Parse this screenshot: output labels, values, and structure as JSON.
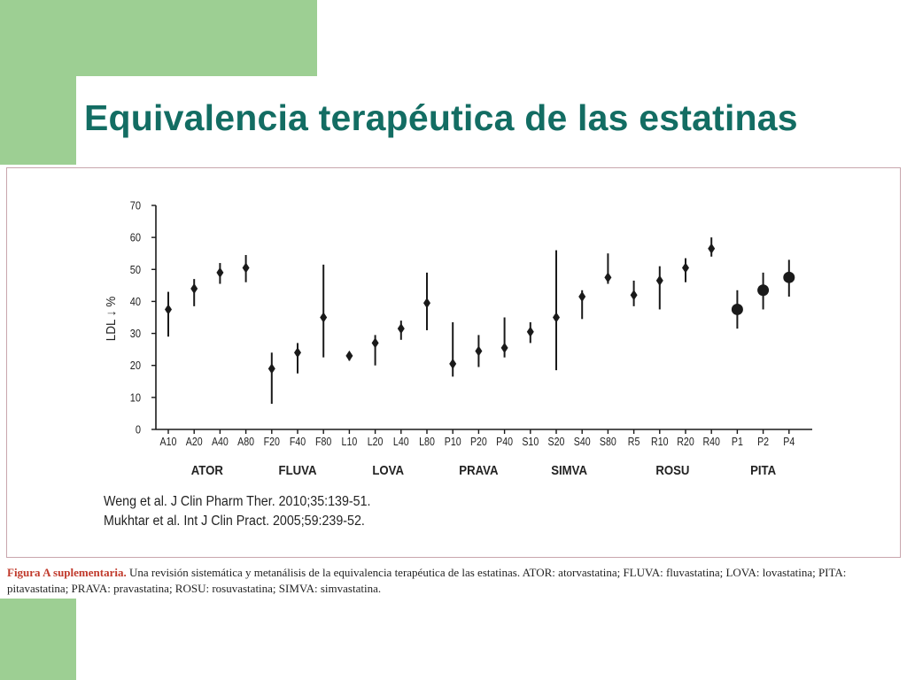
{
  "slide": {
    "title": "Equivalencia terapéutica de las estatinas"
  },
  "references": [
    "Weng et al. J Clin Pharm Ther. 2010;35:139-51.",
    "Mukhtar et al. Int J Clin Pract. 2005;59:239-52."
  ],
  "caption": {
    "label": "Figura A suplementaria.",
    "text": "Una revisión sistemática y metanálisis de la equivalencia terapéutica de las estatinas. ATOR: atorvastatina; FLUVA: fluvastatina; LOVA: lovastatina; PITA: pitavastatina; PRAVA: pravastatina; ROSU: rosuvastatina; SIMVA: simvastatina."
  },
  "chart_data": {
    "type": "scatter",
    "ylabel": "LDL ↓ %",
    "ylim": [
      0,
      70
    ],
    "yticks": [
      0,
      10,
      20,
      30,
      40,
      50,
      60,
      70
    ],
    "grid": false,
    "categories": [
      "A10",
      "A20",
      "A40",
      "A80",
      "F20",
      "F40",
      "F80",
      "L10",
      "L20",
      "L40",
      "L80",
      "P10",
      "P20",
      "P40",
      "S10",
      "S20",
      "S40",
      "S80",
      "R5",
      "R10",
      "R20",
      "R40",
      "P1",
      "P2",
      "P4"
    ],
    "values": [
      37.5,
      44,
      49,
      50.5,
      19,
      24,
      35,
      23,
      27,
      31.5,
      39.5,
      20.5,
      24.5,
      25.5,
      30.5,
      35,
      41.5,
      47.5,
      42,
      46.5,
      50.5,
      56.5,
      37.5,
      43.5,
      47.5
    ],
    "low": [
      29,
      38.5,
      45.5,
      46,
      8,
      17.5,
      22.5,
      21.5,
      20,
      28,
      31,
      16.5,
      19.5,
      22.5,
      27,
      18.5,
      34.5,
      45.5,
      38.5,
      37.5,
      46,
      54,
      31.5,
      37.5,
      41.5
    ],
    "high": [
      43,
      47,
      52,
      54.5,
      24,
      27,
      51.5,
      24,
      29.5,
      34,
      49,
      33.5,
      29.5,
      35,
      33.5,
      56,
      43.5,
      55,
      46.5,
      51,
      53.5,
      60,
      43.5,
      49,
      53
    ],
    "marker_style": [
      "diamond",
      "diamond",
      "diamond",
      "diamond",
      "diamond",
      "diamond",
      "diamond",
      "diamond",
      "diamond",
      "diamond",
      "diamond",
      "diamond",
      "diamond",
      "diamond",
      "diamond",
      "diamond",
      "diamond",
      "diamond",
      "diamond",
      "diamond",
      "diamond",
      "diamond",
      "circle",
      "circle",
      "circle"
    ],
    "groups": [
      {
        "label": "ATOR",
        "start": 0,
        "end": 3
      },
      {
        "label": "FLUVA",
        "start": 4,
        "end": 6
      },
      {
        "label": "LOVA",
        "start": 7,
        "end": 10
      },
      {
        "label": "PRAVA",
        "start": 11,
        "end": 13
      },
      {
        "label": "SIMVA",
        "start": 14,
        "end": 17
      },
      {
        "label": "ROSU",
        "start": 18,
        "end": 21
      },
      {
        "label": "PITA",
        "start": 22,
        "end": 24
      }
    ]
  },
  "colors": {
    "accent_green": "#9dcf93",
    "title_teal": "#136d63",
    "frame_border": "#c9a6ad",
    "caption_label": "#c0392b",
    "marks": "#1a1a1a"
  }
}
